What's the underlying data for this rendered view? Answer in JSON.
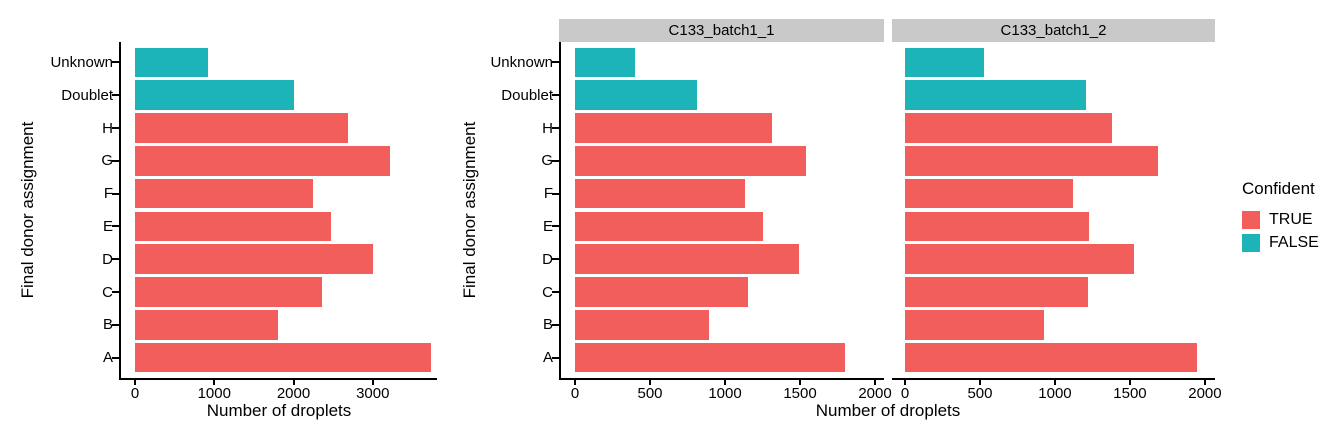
{
  "colors": {
    "confident_true": "#F25E5C",
    "confident_false": "#1CB4B8",
    "strip_bg": "#C9C9C9",
    "axis": "#000000",
    "text": "#000000",
    "background": "#FFFFFF"
  },
  "legend": {
    "title": "Confident",
    "entries": [
      {
        "label": "TRUE",
        "color": "#F25E5C",
        "key": "confident_true"
      },
      {
        "label": "FALSE",
        "color": "#1CB4B8",
        "key": "confident_false"
      }
    ],
    "position": "right"
  },
  "chart_data": [
    {
      "type": "bar",
      "orientation": "horizontal",
      "panel": "combined",
      "categories": [
        "Unknown",
        "Doublet",
        "H",
        "G",
        "F",
        "E",
        "D",
        "C",
        "B",
        "A"
      ],
      "values": [
        920,
        2010,
        2690,
        3220,
        2250,
        2470,
        3000,
        2360,
        1800,
        3730
      ],
      "confident": [
        false,
        false,
        true,
        true,
        true,
        true,
        true,
        true,
        true,
        true
      ],
      "xlabel": "Number of droplets",
      "ylabel": "Final donor assignment",
      "xticks": [
        0,
        1000,
        2000,
        3000
      ],
      "xlim": [
        0,
        3810
      ],
      "grid": false,
      "legend_position": "none"
    },
    {
      "type": "bar",
      "orientation": "horizontal",
      "facet_label": "C133_batch1_1",
      "categories": [
        "Unknown",
        "Doublet",
        "H",
        "G",
        "F",
        "E",
        "D",
        "C",
        "B",
        "A"
      ],
      "values": [
        400,
        810,
        1310,
        1540,
        1130,
        1250,
        1490,
        1150,
        890,
        1800
      ],
      "confident": [
        false,
        false,
        true,
        true,
        true,
        true,
        true,
        true,
        true,
        true
      ],
      "xlabel": "Number of droplets",
      "ylabel": "Final donor assignment",
      "xticks": [
        0,
        500,
        1000,
        1500,
        2000
      ],
      "xlim": [
        0,
        2060
      ],
      "grid": false,
      "legend_position": "right"
    },
    {
      "type": "bar",
      "orientation": "horizontal",
      "facet_label": "C133_batch1_2",
      "categories": [
        "Unknown",
        "Doublet",
        "H",
        "G",
        "F",
        "E",
        "D",
        "C",
        "B",
        "A"
      ],
      "values": [
        530,
        1210,
        1380,
        1690,
        1120,
        1230,
        1530,
        1220,
        930,
        1950
      ],
      "confident": [
        false,
        false,
        true,
        true,
        true,
        true,
        true,
        true,
        true,
        true
      ],
      "xlabel": "Number of droplets",
      "ylabel": "Final donor assignment",
      "xticks": [
        0,
        500,
        1000,
        1500,
        2000
      ],
      "xlim": [
        0,
        2067
      ],
      "grid": false,
      "legend_position": "right"
    }
  ]
}
